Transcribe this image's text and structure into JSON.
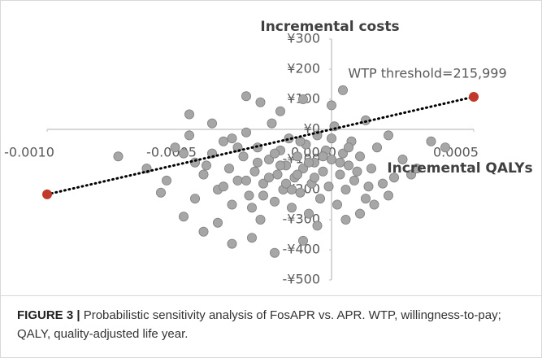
{
  "chart_data": {
    "type": "scatter",
    "y_axis_title": "Incremental costs",
    "x_axis_title": "Incremental QALYs",
    "annotation": "WTP threshold=215,999",
    "xlim": [
      -0.001,
      0.0005
    ],
    "ylim": [
      -500,
      300
    ],
    "xticks": [
      {
        "value": -0.001,
        "label": "-0.0010"
      },
      {
        "value": -0.0005,
        "label": "-0.0005"
      },
      {
        "value": 0,
        "label": "0.0000"
      },
      {
        "value": 0.0005,
        "label": "0.0005"
      }
    ],
    "yticks": [
      {
        "value": 300,
        "label": "¥300"
      },
      {
        "value": 200,
        "label": "¥200"
      },
      {
        "value": 100,
        "label": "¥100"
      },
      {
        "value": 0,
        "label": "¥0"
      },
      {
        "value": -100,
        "label": "-¥100"
      },
      {
        "value": -200,
        "label": "-¥200"
      },
      {
        "value": -300,
        "label": "-¥300"
      },
      {
        "value": -400,
        "label": "-¥400"
      },
      {
        "value": -500,
        "label": "-¥500"
      }
    ],
    "grid": false,
    "series": [
      {
        "color": "#a6a6a6",
        "x": [
          -0.00055,
          -0.0005,
          -0.00048,
          -0.00045,
          -0.00042,
          -0.0004,
          -0.00038,
          -0.00036,
          -0.00035,
          -0.00033,
          -0.00031,
          -0.0003,
          -0.00029,
          -0.00027,
          -0.00026,
          -0.00025,
          -0.00024,
          -0.00022,
          -0.00021,
          -0.0002,
          -0.00019,
          -0.00018,
          -0.00017,
          -0.00016,
          -0.00015,
          -0.00014,
          -0.00013,
          -0.00012,
          -0.00011,
          -0.0001,
          -9e-05,
          -8e-05,
          -7e-05,
          -6e-05,
          -5e-05,
          -4e-05,
          -3e-05,
          -2e-05,
          -1e-05,
          0,
          1e-05,
          2e-05,
          3e-05,
          4e-05,
          5e-05,
          6e-05,
          7e-05,
          8e-05,
          0.0001,
          0.00012,
          0.00014,
          0.00016,
          0.00018,
          0.0002,
          0.00025,
          0.00028,
          0.00035,
          0.0004,
          0.0003,
          -0.00075,
          -0.00065,
          -0.0006,
          -0.00052,
          -0.00045,
          -0.00035,
          -0.0004,
          -0.00028,
          -0.0002,
          -0.0001,
          -5e-05,
          5e-05,
          0.0001,
          0.00015,
          0.0002,
          0.00022,
          -0.0003,
          -0.00025,
          -0.00018,
          -0.0001,
          0,
          -0.0005,
          -0.00042,
          -0.00035,
          -0.00022,
          -0.00018,
          -0.00014,
          -0.00026,
          -0.0003,
          -0.00012,
          -8e-05,
          -0.0002,
          -0.00016,
          -0.00024,
          -6e-05,
          -3e-05,
          3e-05,
          -0.00033,
          -0.00038,
          -0.00044,
          -0.00028,
          -0.00011,
          0,
          6e-05,
          9e-05,
          0.00013,
          0.00012,
          4e-05,
          -0.00058,
          -0.00052,
          -0.00048
        ],
        "values": [
          -60,
          -20,
          -110,
          -150,
          -80,
          -200,
          -40,
          -130,
          -250,
          -170,
          -90,
          -10,
          -220,
          -140,
          -60,
          -300,
          -180,
          -100,
          20,
          -240,
          -150,
          -70,
          -200,
          -120,
          -30,
          -260,
          -160,
          -90,
          -210,
          -130,
          -50,
          -280,
          -180,
          -110,
          -20,
          -230,
          -140,
          -70,
          -190,
          -100,
          10,
          -250,
          -150,
          -80,
          -200,
          -120,
          -40,
          -170,
          -90,
          -230,
          -130,
          -60,
          -180,
          -20,
          -100,
          -150,
          -40,
          -60,
          -130,
          -90,
          -130,
          -210,
          -290,
          -340,
          -380,
          -310,
          -360,
          -410,
          -370,
          -320,
          -300,
          -280,
          -250,
          -220,
          -160,
          110,
          90,
          60,
          100,
          80,
          50,
          20,
          -30,
          -160,
          -120,
          -200,
          -110,
          -170,
          -150,
          -110,
          -80,
          -180,
          -220,
          -160,
          -90,
          -110,
          -60,
          -190,
          -120,
          -260,
          -40,
          -30,
          -60,
          -140,
          -190,
          30,
          130,
          -170,
          -80,
          -230
        ]
      },
      {
        "color": "#c0392b",
        "line": "dotted",
        "line_color": "#000000",
        "x": [
          -0.001,
          0.0005
        ],
        "values": [
          -216,
          108
        ]
      }
    ],
    "caption_label": "FIGURE 3 |",
    "caption_text": "Probabilistic sensitivity analysis of FosAPR vs. APR. WTP, willingness-to-pay; QALY, quality-adjusted life year."
  }
}
